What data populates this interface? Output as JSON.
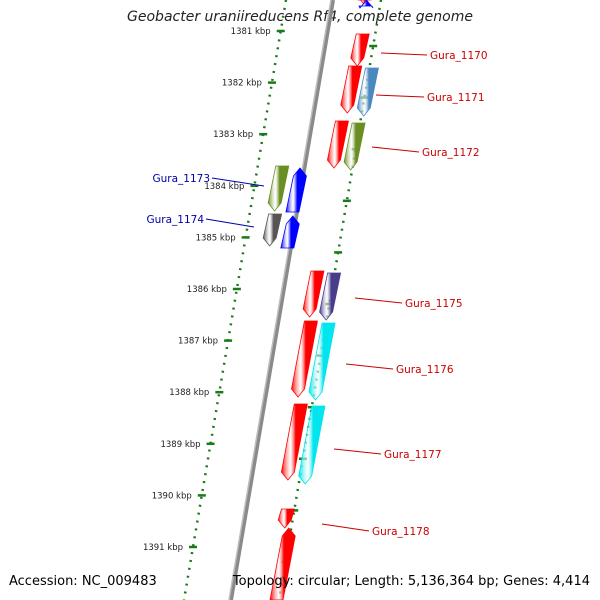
{
  "title": "Geobacter uraniireducens Rf4, complete genome",
  "footer": {
    "accession": "Accession: NC_009483",
    "summary": "Topology: circular; Length: 5,136,364 bp; Genes: 4,414"
  },
  "colors": {
    "backbone": "#8a8a8a",
    "ruler_dots": "#1a7a1a",
    "label_forward": "#cc0000",
    "label_reverse": "#0000aa",
    "gene_red": "#ff0000",
    "gene_blue": "#0000ff",
    "gene_steelblue": "#4a88c0",
    "gene_olive": "#6b8e23",
    "gene_grey": "#555555",
    "gene_slate": "#483d8b",
    "gene_cyan": "#00e5ee"
  },
  "ruler_labels": [
    "1381 kbp",
    "1382 kbp",
    "1383 kbp",
    "1384 kbp",
    "1385 kbp",
    "1386 kbp",
    "1387 kbp",
    "1388 kbp",
    "1389 kbp",
    "1390 kbp",
    "1391 kbp"
  ],
  "gene_labels": [
    {
      "name": "Gura_1170",
      "strand": "forward"
    },
    {
      "name": "Gura_1171",
      "strand": "forward"
    },
    {
      "name": "Gura_1172",
      "strand": "forward"
    },
    {
      "name": "Gura_1173",
      "strand": "reverse"
    },
    {
      "name": "Gura_1174",
      "strand": "reverse"
    },
    {
      "name": "Gura_1175",
      "strand": "forward"
    },
    {
      "name": "Gura_1176",
      "strand": "forward"
    },
    {
      "name": "Gura_1177",
      "strand": "forward"
    },
    {
      "name": "Gura_1178",
      "strand": "forward"
    }
  ]
}
